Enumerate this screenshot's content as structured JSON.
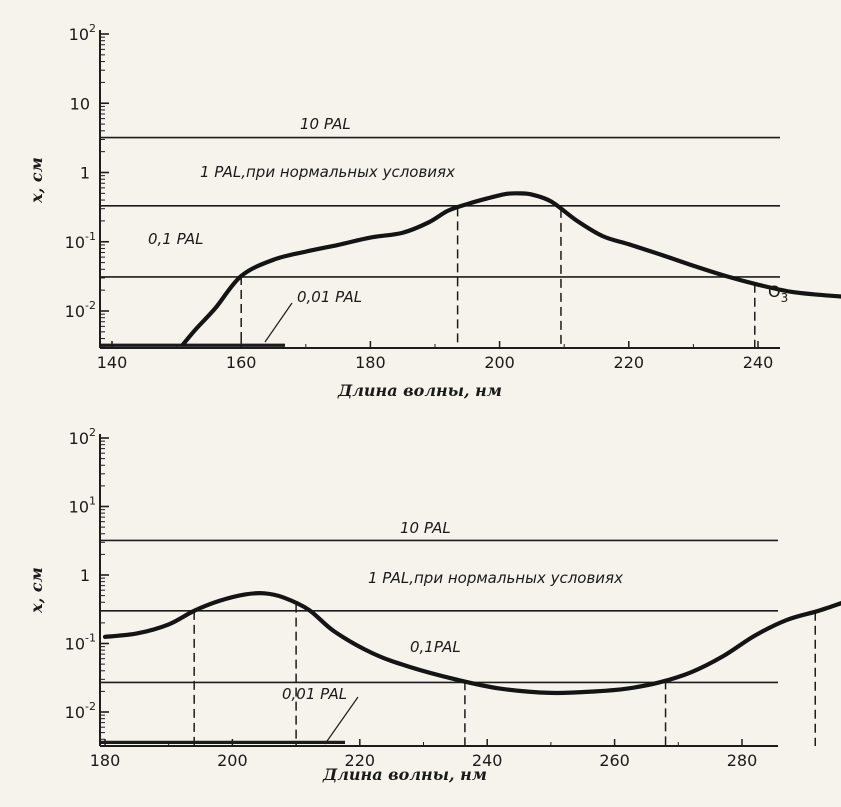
{
  "chart_data": [
    {
      "type": "line",
      "xlabel": "Длина волны, нм",
      "ylabel": "x, см",
      "xlim": [
        140,
        262
      ],
      "ylim": [
        0.003,
        100
      ],
      "yscale": "log",
      "grid": false,
      "x_ticks": [
        "140",
        "160",
        "180",
        "200",
        "220",
        "240"
      ],
      "y_ticks": [
        {
          "value": 100,
          "base": "10",
          "exp": "2"
        },
        {
          "value": 10,
          "base": "10",
          "exp": ""
        },
        {
          "value": 1,
          "base": "1",
          "exp": ""
        },
        {
          "value": 0.1,
          "base": "10",
          "exp": "-1"
        },
        {
          "value": 0.01,
          "base": "10",
          "exp": "-2"
        }
      ],
      "levels": [
        {
          "label": "10 PAL",
          "value": 3.2
        },
        {
          "label": "1 PAL,при нормальных условиях",
          "value": 0.33
        },
        {
          "label": "0,1 PAL",
          "value": 0.031
        },
        {
          "label": "0,01 PAL",
          "value": 0.0032
        }
      ],
      "series": [
        {
          "name": "O3",
          "x": [
            151,
            153,
            156,
            160,
            165,
            170,
            175,
            180,
            185,
            189,
            192,
            195,
            198,
            201,
            203,
            205,
            208,
            212,
            216,
            220,
            225,
            230,
            235,
            240,
            245,
            250,
            255,
            259
          ],
          "y": [
            0.0033,
            0.0055,
            0.011,
            0.032,
            0.055,
            0.072,
            0.09,
            0.115,
            0.135,
            0.19,
            0.28,
            0.35,
            0.42,
            0.49,
            0.5,
            0.48,
            0.38,
            0.2,
            0.12,
            0.092,
            0.065,
            0.045,
            0.032,
            0.024,
            0.019,
            0.017,
            0.016,
            0.018
          ]
        }
      ],
      "intersections_x": [
        160,
        193.5,
        209.5,
        239.5
      ]
    },
    {
      "type": "line",
      "xlabel": "Длина волны, нм",
      "ylabel": "x, см",
      "xlim": [
        180,
        297
      ],
      "ylim": [
        0.0035,
        100
      ],
      "yscale": "log",
      "grid": false,
      "x_ticks": [
        "180",
        "200",
        "220",
        "240",
        "260",
        "280"
      ],
      "y_ticks": [
        {
          "value": 100,
          "base": "10",
          "exp": "2"
        },
        {
          "value": 10,
          "base": "10",
          "exp": "1"
        },
        {
          "value": 1,
          "base": "1",
          "exp": ""
        },
        {
          "value": 0.1,
          "base": "10",
          "exp": "-1"
        },
        {
          "value": 0.01,
          "base": "10",
          "exp": "-2"
        }
      ],
      "levels": [
        {
          "label": "10 PAL",
          "value": 3.2
        },
        {
          "label": "1 PAL,при нормальных условиях",
          "value": 0.3
        },
        {
          "label": "0,1PAL",
          "value": 0.027
        },
        {
          "label": "0,01 PAL",
          "value": 0.0036
        }
      ],
      "series": [
        {
          "name": "",
          "x": [
            180,
            185,
            190,
            194,
            198,
            202,
            205,
            208,
            212,
            216,
            222,
            228,
            235,
            242,
            250,
            257,
            262,
            267,
            272,
            277,
            282,
            287,
            292,
            296
          ],
          "y": [
            0.125,
            0.14,
            0.19,
            0.3,
            0.42,
            0.52,
            0.54,
            0.47,
            0.31,
            0.15,
            0.072,
            0.045,
            0.03,
            0.022,
            0.019,
            0.02,
            0.022,
            0.027,
            0.038,
            0.065,
            0.13,
            0.22,
            0.3,
            0.4
          ]
        }
      ],
      "intersections_x": [
        194,
        210,
        236.5,
        268,
        291.5
      ]
    }
  ]
}
